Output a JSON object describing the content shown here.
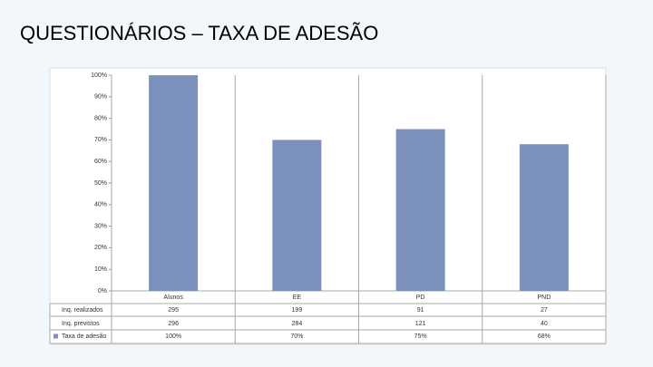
{
  "chart_data": {
    "type": "bar",
    "title": "QUESTIONÁRIOS – TAXA DE ADESÃO",
    "categories": [
      "Alunos",
      "EE",
      "PD",
      "PND"
    ],
    "series": [
      {
        "name": "Taxa de adesão",
        "color": "#7b91bc",
        "values": [
          100,
          70,
          75,
          68
        ],
        "value_labels": [
          "100%",
          "70%",
          "75%",
          "68%"
        ]
      }
    ],
    "ylim": [
      0,
      100
    ],
    "yticks": [
      {
        "value": 0,
        "label": "0%"
      },
      {
        "value": 10,
        "label": "10%"
      },
      {
        "value": 20,
        "label": "20%"
      },
      {
        "value": 30,
        "label": "30%"
      },
      {
        "value": 40,
        "label": "40%"
      },
      {
        "value": 50,
        "label": "50%"
      },
      {
        "value": 60,
        "label": "60%"
      },
      {
        "value": 70,
        "label": "70%"
      },
      {
        "value": 80,
        "label": "80%"
      },
      {
        "value": 90,
        "label": "90%"
      },
      {
        "value": 100,
        "label": "100%"
      }
    ],
    "table_rows": [
      {
        "name": "Inq. realizados",
        "values": [
          295,
          199,
          91,
          27
        ]
      },
      {
        "name": "Inq. previstos",
        "values": [
          296,
          284,
          121,
          40
        ]
      }
    ]
  }
}
